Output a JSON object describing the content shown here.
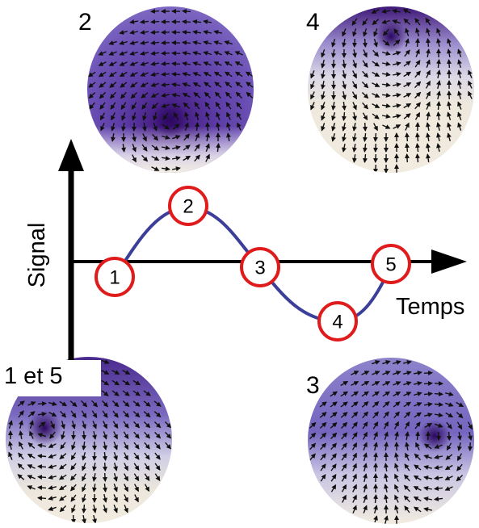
{
  "axes": {
    "y_label": "Signal",
    "x_label": "Temps"
  },
  "panels": [
    {
      "label": "2"
    },
    {
      "label": "4"
    },
    {
      "label": "1 et 5"
    },
    {
      "label": "3"
    }
  ],
  "points": [
    {
      "label": "1"
    },
    {
      "label": "2"
    },
    {
      "label": "3"
    },
    {
      "label": "4"
    },
    {
      "label": "5"
    }
  ],
  "colors": {
    "curve": "#3b3f99",
    "marker_ring": "#e01b1b",
    "core": "#3a1070",
    "field_light": "#f1ece0",
    "arrow": "#111111"
  },
  "icons": {
    "arrow": "arrow-icon"
  }
}
